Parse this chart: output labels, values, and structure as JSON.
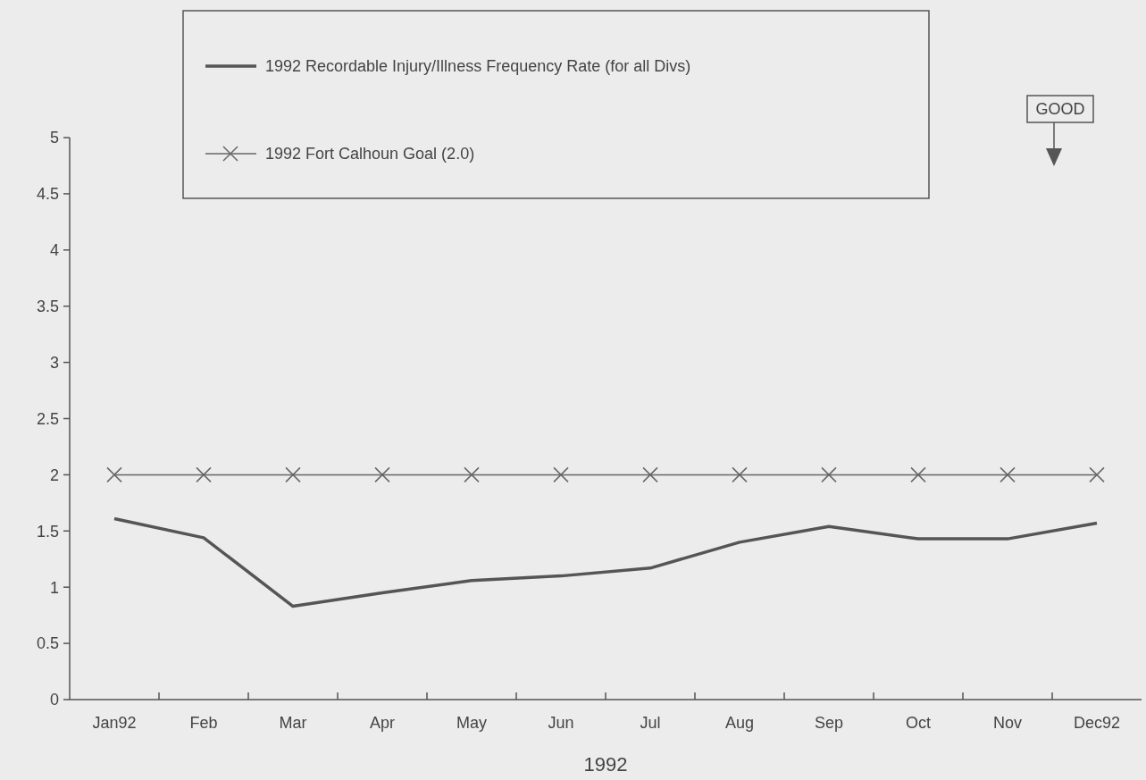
{
  "chart_data": {
    "type": "line",
    "xlabel": "1992",
    "categories": [
      "Jan92",
      "Feb",
      "Mar",
      "Apr",
      "May",
      "Jun",
      "Jul",
      "Aug",
      "Sep",
      "Oct",
      "Nov",
      "Dec92"
    ],
    "series": [
      {
        "name": "1992 Recordable Injury/Illness Frequency Rate (for all Divs)",
        "color": "#555555",
        "marker": "none",
        "values": [
          1.61,
          1.44,
          0.83,
          0.95,
          1.06,
          1.1,
          1.17,
          1.4,
          1.54,
          1.43,
          1.43,
          1.57
        ]
      },
      {
        "name": "1992 Fort Calhoun Goal (2.0)",
        "color": "#666666",
        "marker": "cross",
        "values": [
          2,
          2,
          2,
          2,
          2,
          2,
          2,
          2,
          2,
          2,
          2,
          2
        ]
      }
    ],
    "ylim": [
      0,
      5
    ],
    "yticks": [
      0,
      0.5,
      1,
      1.5,
      2,
      2.5,
      3,
      3.5,
      4,
      4.5,
      5
    ],
    "grid": false,
    "legend": "top",
    "annotations": [
      "GOOD"
    ]
  }
}
